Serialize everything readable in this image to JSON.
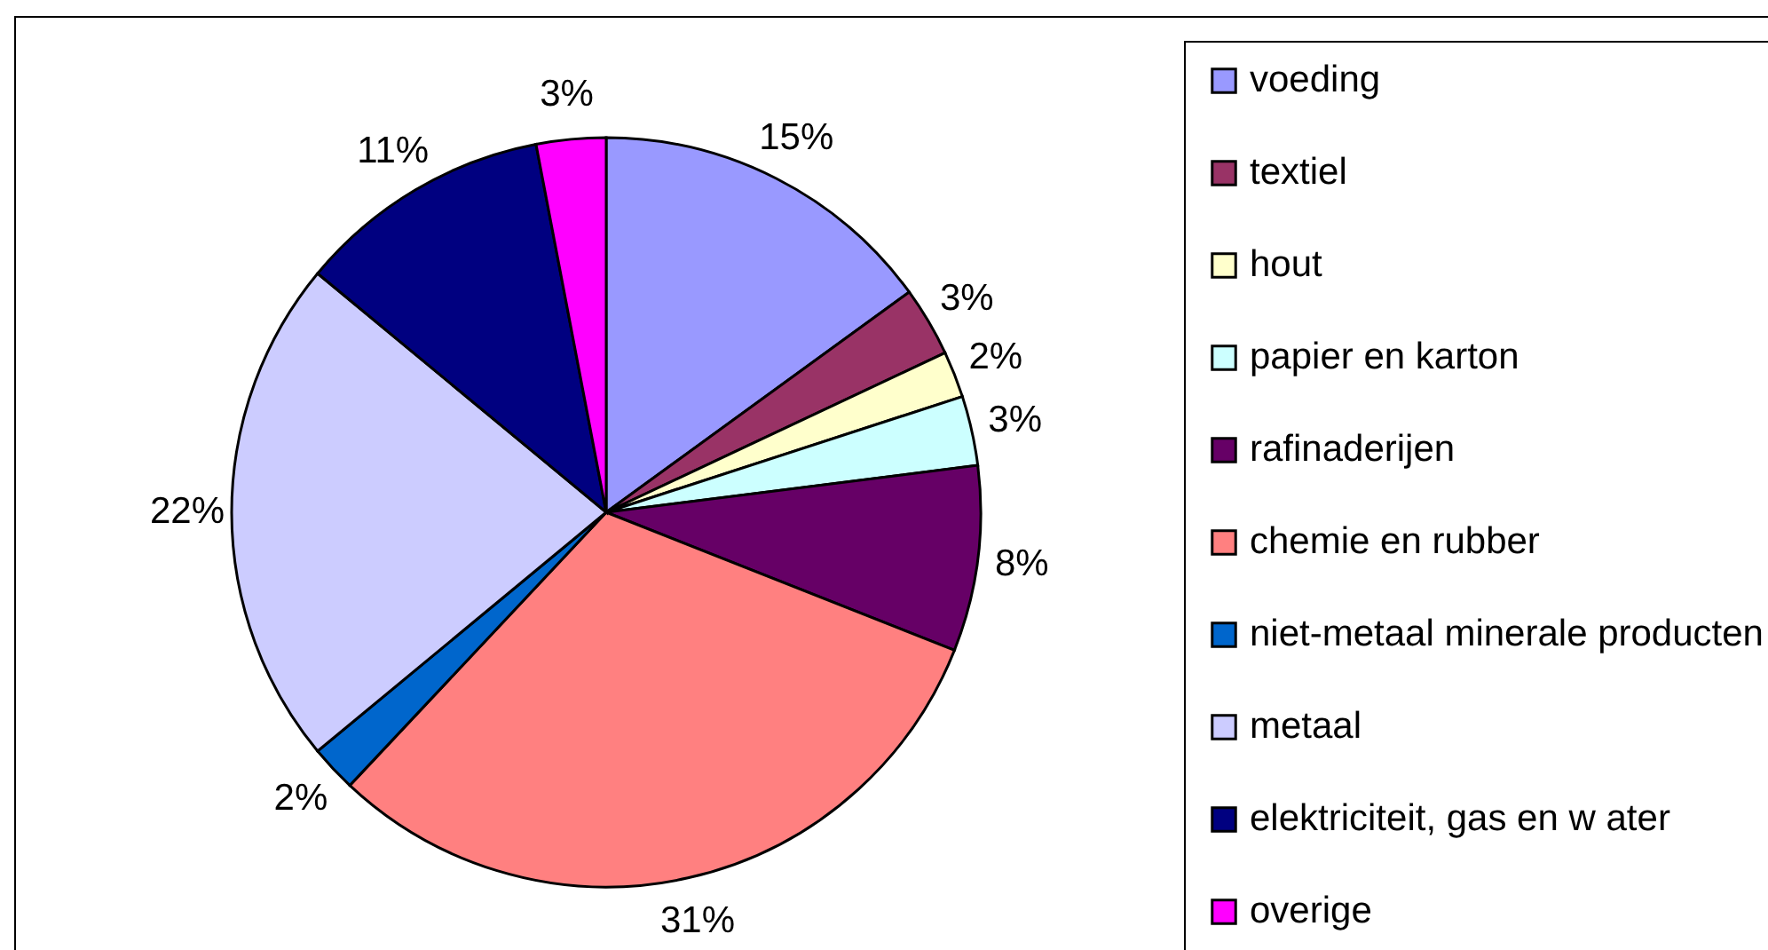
{
  "chart_data": {
    "type": "pie",
    "categories": [
      "voeding",
      "textiel",
      "hout",
      "papier en karton",
      "rafinaderijen",
      "chemie en rubber",
      "niet-metaal minerale producten",
      "metaal",
      "elektriciteit, gas en w ater",
      "overige"
    ],
    "values": [
      15,
      3,
      2,
      3,
      8,
      31,
      2,
      22,
      11,
      3
    ],
    "colors": [
      "#9999ff",
      "#993366",
      "#ffffcc",
      "#ccffff",
      "#660066",
      "#ff8080",
      "#0066cc",
      "#ccccff",
      "#000080",
      "#ff00ff"
    ],
    "value_labels": [
      "15%",
      "3%",
      "2%",
      "3%",
      "8%",
      "31%",
      "2%",
      "22%",
      "11%",
      "3%"
    ],
    "legend": "right"
  }
}
